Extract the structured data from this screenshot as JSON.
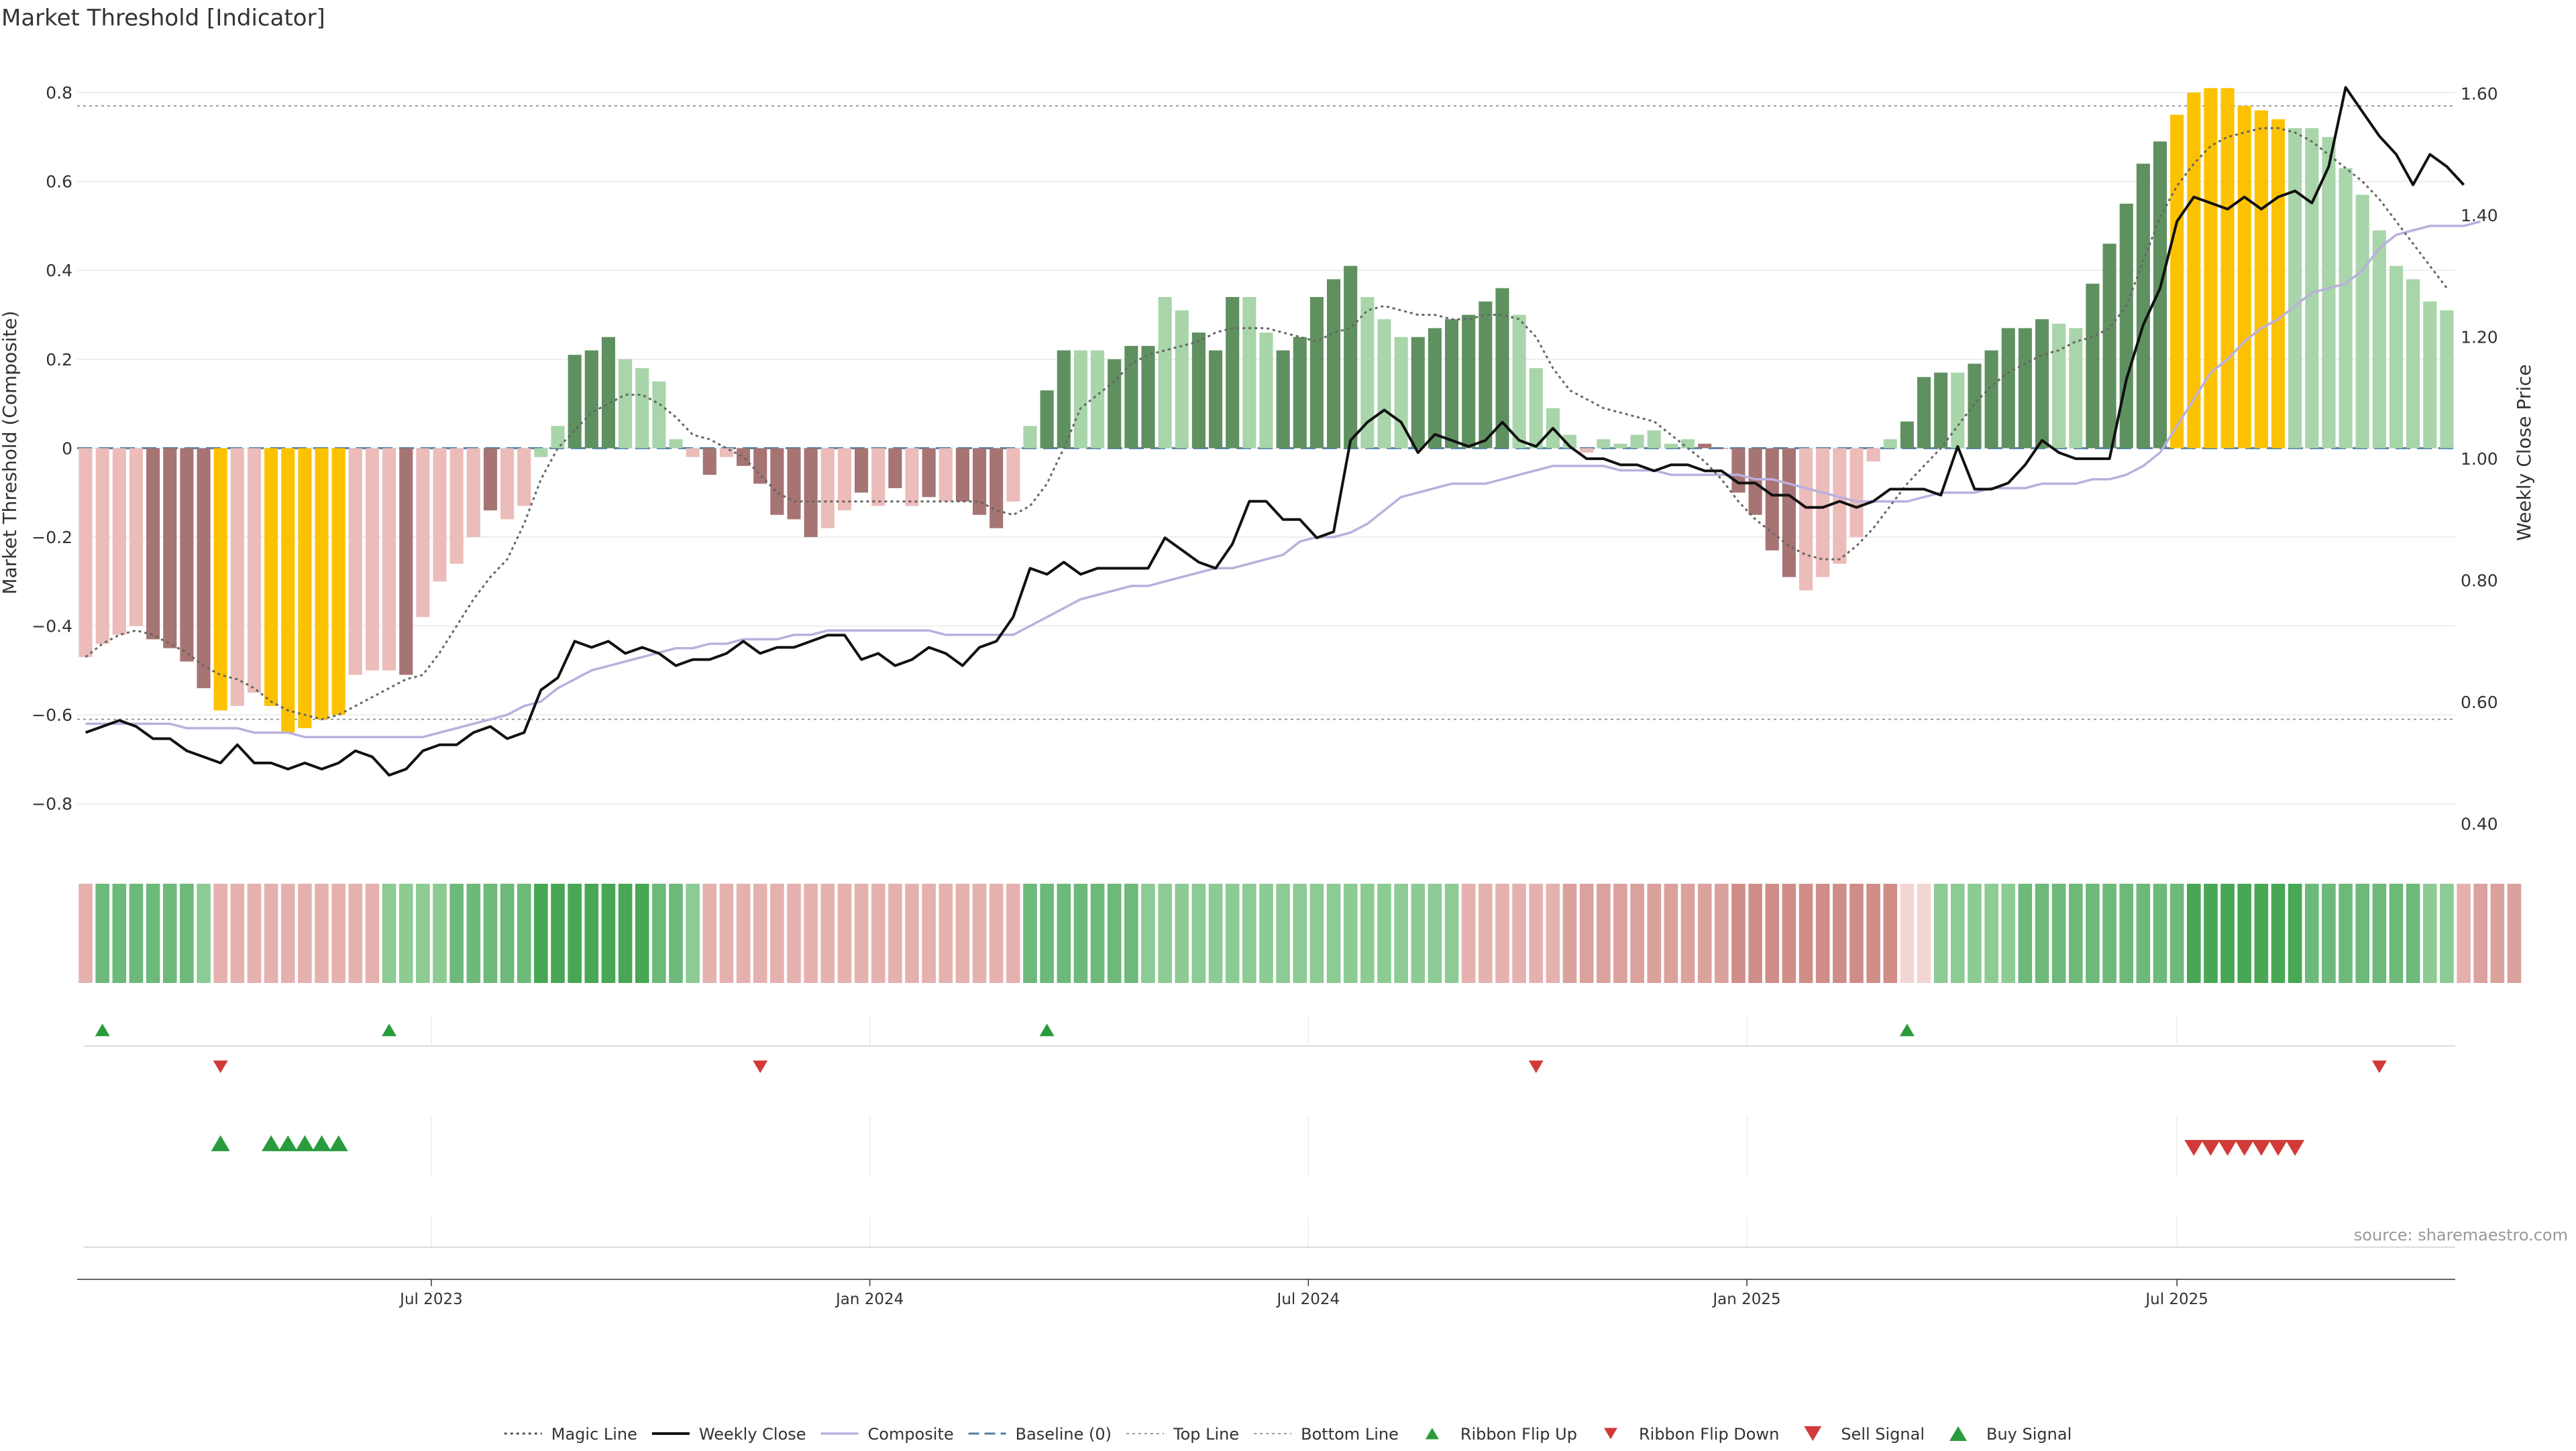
{
  "title": "Market Threshold [Indicator]",
  "source": "source: sharemaestro.com",
  "colors": {
    "pos_strong": "#5f9160",
    "pos_weak": "#a8d5a9",
    "neg_strong": "#a67473",
    "neg_weak": "#ebbcb9",
    "extreme": "#fcc202",
    "close": "#111111",
    "composite": "#b9b0dd",
    "magic": "#666666",
    "baseline": "#4f7fa6",
    "threshold": "#999999",
    "buy": "#2a9b3d",
    "sell": "#d23a3a"
  },
  "chart_data": {
    "type": "bar",
    "title": "Market Threshold [Indicator]",
    "ylabel": "Market Threshold (Composite)",
    "y2label": "Weekly Close Price",
    "ylim": [
      -0.9,
      0.88
    ],
    "y2lim": [
      0.36,
      1.66
    ],
    "yticks": [
      0.8,
      0.6,
      0.4,
      0.2,
      0,
      -0.2,
      -0.4,
      -0.6,
      -0.8
    ],
    "ytick_labels": [
      "0.8",
      "0.6",
      "0.4",
      "0.2",
      "0",
      "−0.2",
      "−0.4",
      "−0.6",
      "−0.8"
    ],
    "y2ticks": [
      1.6,
      1.4,
      1.2,
      1.0,
      0.8,
      0.6,
      0.4
    ],
    "y2tick_labels": [
      "1.60",
      "1.40",
      "1.20",
      "1.00",
      "0.80",
      "0.60",
      "0.40"
    ],
    "xticks": [
      {
        "i": 20.5,
        "label": "Jul 2023"
      },
      {
        "i": 46.5,
        "label": "Jan 2024"
      },
      {
        "i": 72.5,
        "label": "Jul 2024"
      },
      {
        "i": 98.5,
        "label": "Jan 2025"
      },
      {
        "i": 124,
        "label": "Jul 2025"
      }
    ],
    "top_line": 0.77,
    "bottom_line": -0.61,
    "baseline": 0,
    "composite": [
      -0.47,
      -0.44,
      -0.42,
      -0.4,
      -0.43,
      -0.45,
      -0.48,
      -0.54,
      -0.59,
      -0.58,
      -0.55,
      -0.58,
      -0.64,
      -0.63,
      -0.61,
      -0.6,
      -0.51,
      -0.5,
      -0.5,
      -0.51,
      -0.38,
      -0.3,
      -0.26,
      -0.2,
      -0.14,
      -0.16,
      -0.13,
      -0.02,
      0.05,
      0.21,
      0.22,
      0.25,
      0.2,
      0.18,
      0.15,
      0.02,
      -0.02,
      -0.06,
      -0.02,
      -0.04,
      -0.08,
      -0.15,
      -0.16,
      -0.2,
      -0.18,
      -0.14,
      -0.1,
      -0.13,
      -0.09,
      -0.13,
      -0.11,
      -0.12,
      -0.12,
      -0.15,
      -0.18,
      -0.12,
      0.05,
      0.13,
      0.22,
      0.22,
      0.22,
      0.2,
      0.23,
      0.23,
      0.34,
      0.31,
      0.26,
      0.22,
      0.34,
      0.34,
      0.26,
      0.22,
      0.25,
      0.34,
      0.38,
      0.41,
      0.34,
      0.29,
      0.25,
      0.25,
      0.27,
      0.29,
      0.3,
      0.33,
      0.36,
      0.3,
      0.18,
      0.09,
      0.03,
      -0.01,
      0.02,
      0.01,
      0.03,
      0.04,
      0.01,
      0.02,
      0.01,
      0,
      -0.1,
      -0.15,
      -0.23,
      -0.29,
      -0.32,
      -0.29,
      -0.26,
      -0.2,
      -0.03,
      0.02,
      0.06,
      0.16,
      0.17,
      0.17,
      0.19,
      0.22,
      0.27,
      0.27,
      0.29,
      0.28,
      0.27,
      0.37,
      0.46,
      0.55,
      0.64,
      0.69,
      0.75,
      0.8,
      0.81,
      0.81,
      0.77,
      0.76,
      0.74,
      0.72,
      0.72,
      0.7,
      0.63,
      0.57,
      0.49,
      0.41,
      0.38,
      0.33,
      0.31
    ],
    "bar_class": [
      "nw",
      "nw",
      "nw",
      "nw",
      "ns",
      "ns",
      "ns",
      "ns",
      "x",
      "nw",
      "nw",
      "x",
      "x",
      "x",
      "x",
      "x",
      "nw",
      "nw",
      "nw",
      "ns",
      "nw",
      "nw",
      "nw",
      "nw",
      "ns",
      "nw",
      "nw",
      "pw",
      "pw",
      "ps",
      "ps",
      "ps",
      "pw",
      "pw",
      "pw",
      "pw",
      "nw",
      "ns",
      "nw",
      "ns",
      "ns",
      "ns",
      "ns",
      "ns",
      "nw",
      "nw",
      "ns",
      "nw",
      "ns",
      "nw",
      "ns",
      "nw",
      "ns",
      "ns",
      "ns",
      "nw",
      "pw",
      "ps",
      "ps",
      "pw",
      "pw",
      "ps",
      "ps",
      "ps",
      "pw",
      "pw",
      "ps",
      "ps",
      "ps",
      "pw",
      "pw",
      "ps",
      "ps",
      "ps",
      "ps",
      "ps",
      "pw",
      "pw",
      "pw",
      "ps",
      "ps",
      "ps",
      "ps",
      "ps",
      "ps",
      "pw",
      "pw",
      "pw",
      "pw",
      "nw",
      "pw",
      "pw",
      "pw",
      "pw",
      "pw",
      "pw",
      "ns",
      "ns",
      "ns",
      "ns",
      "ns",
      "ns",
      "nw",
      "nw",
      "nw",
      "nw",
      "nw",
      "pw",
      "ps",
      "ps",
      "ps",
      "pw",
      "ps",
      "ps",
      "ps",
      "ps",
      "ps",
      "pw",
      "pw",
      "ps",
      "ps",
      "ps",
      "ps",
      "ps",
      "x",
      "x",
      "x",
      "x",
      "x",
      "x",
      "x",
      "pw",
      "pw",
      "pw",
      "pw",
      "pw",
      "pw",
      "pw",
      "pw",
      "pw",
      "pw",
      "pw"
    ],
    "magic": [
      -0.47,
      -0.44,
      -0.42,
      -0.41,
      -0.42,
      -0.44,
      -0.46,
      -0.49,
      -0.51,
      -0.52,
      -0.54,
      -0.57,
      -0.59,
      -0.6,
      -0.61,
      -0.6,
      -0.58,
      -0.56,
      -0.54,
      -0.52,
      -0.51,
      -0.46,
      -0.4,
      -0.34,
      -0.29,
      -0.25,
      -0.17,
      -0.07,
      0.0,
      0.04,
      0.08,
      0.1,
      0.12,
      0.12,
      0.1,
      0.07,
      0.03,
      0.02,
      0.0,
      -0.02,
      -0.06,
      -0.1,
      -0.12,
      -0.12,
      -0.12,
      -0.12,
      -0.12,
      -0.12,
      -0.12,
      -0.12,
      -0.12,
      -0.12,
      -0.12,
      -0.12,
      -0.14,
      -0.15,
      -0.13,
      -0.08,
      0.0,
      0.09,
      0.12,
      0.15,
      0.19,
      0.21,
      0.22,
      0.23,
      0.24,
      0.26,
      0.27,
      0.27,
      0.27,
      0.26,
      0.25,
      0.24,
      0.26,
      0.27,
      0.31,
      0.32,
      0.31,
      0.3,
      0.3,
      0.29,
      0.29,
      0.3,
      0.3,
      0.29,
      0.25,
      0.18,
      0.13,
      0.11,
      0.09,
      0.08,
      0.07,
      0.06,
      0.03,
      0.0,
      -0.03,
      -0.07,
      -0.12,
      -0.16,
      -0.19,
      -0.22,
      -0.24,
      -0.25,
      -0.25,
      -0.22,
      -0.18,
      -0.13,
      -0.08,
      -0.04,
      0.0,
      0.05,
      0.1,
      0.14,
      0.17,
      0.19,
      0.21,
      0.22,
      0.24,
      0.25,
      0.27,
      0.32,
      0.42,
      0.52,
      0.59,
      0.64,
      0.68,
      0.7,
      0.71,
      0.72,
      0.72,
      0.71,
      0.69,
      0.66,
      0.63,
      0.6,
      0.56,
      0.51,
      0.46,
      0.41,
      0.36
    ],
    "close": [
      0.55,
      0.56,
      0.57,
      0.56,
      0.54,
      0.54,
      0.52,
      0.51,
      0.5,
      0.53,
      0.5,
      0.5,
      0.49,
      0.5,
      0.49,
      0.5,
      0.52,
      0.51,
      0.48,
      0.49,
      0.52,
      0.53,
      0.53,
      0.55,
      0.56,
      0.54,
      0.55,
      0.62,
      0.64,
      0.7,
      0.69,
      0.7,
      0.68,
      0.69,
      0.68,
      0.66,
      0.67,
      0.67,
      0.68,
      0.7,
      0.68,
      0.69,
      0.69,
      0.7,
      0.71,
      0.71,
      0.67,
      0.68,
      0.66,
      0.67,
      0.69,
      0.68,
      0.66,
      0.69,
      0.7,
      0.74,
      0.82,
      0.81,
      0.83,
      0.81,
      0.82,
      0.82,
      0.82,
      0.82,
      0.87,
      0.85,
      0.83,
      0.82,
      0.86,
      0.93,
      0.93,
      0.9,
      0.9,
      0.87,
      0.88,
      1.03,
      1.06,
      1.08,
      1.06,
      1.01,
      1.04,
      1.03,
      1.02,
      1.03,
      1.06,
      1.03,
      1.02,
      1.05,
      1.02,
      1.0,
      1.0,
      0.99,
      0.99,
      0.98,
      0.99,
      0.99,
      0.98,
      0.98,
      0.96,
      0.96,
      0.94,
      0.94,
      0.92,
      0.92,
      0.93,
      0.92,
      0.93,
      0.95,
      0.95,
      0.95,
      0.94,
      1.02,
      0.95,
      0.95,
      0.96,
      0.99,
      1.03,
      1.01,
      1.0,
      1.0,
      1.0,
      1.13,
      1.22,
      1.28,
      1.39,
      1.43,
      1.42,
      1.41,
      1.43,
      1.41,
      1.43,
      1.44,
      1.42,
      1.48,
      1.61,
      1.57,
      1.53,
      1.5,
      1.45,
      1.5,
      1.48,
      1.45
    ],
    "composite_line": [
      -0.62,
      -0.62,
      -0.62,
      -0.62,
      -0.62,
      -0.62,
      -0.63,
      -0.63,
      -0.63,
      -0.63,
      -0.64,
      -0.64,
      -0.64,
      -0.65,
      -0.65,
      -0.65,
      -0.65,
      -0.65,
      -0.65,
      -0.65,
      -0.65,
      -0.64,
      -0.63,
      -0.62,
      -0.61,
      -0.6,
      -0.58,
      -0.57,
      -0.54,
      -0.52,
      -0.5,
      -0.49,
      -0.48,
      -0.47,
      -0.46,
      -0.45,
      -0.45,
      -0.44,
      -0.44,
      -0.43,
      -0.43,
      -0.43,
      -0.42,
      -0.42,
      -0.41,
      -0.41,
      -0.41,
      -0.41,
      -0.41,
      -0.41,
      -0.41,
      -0.42,
      -0.42,
      -0.42,
      -0.42,
      -0.42,
      -0.4,
      -0.38,
      -0.36,
      -0.34,
      -0.33,
      -0.32,
      -0.31,
      -0.31,
      -0.3,
      -0.29,
      -0.28,
      -0.27,
      -0.27,
      -0.26,
      -0.25,
      -0.24,
      -0.21,
      -0.2,
      -0.2,
      -0.19,
      -0.17,
      -0.14,
      -0.11,
      -0.1,
      -0.09,
      -0.08,
      -0.08,
      -0.08,
      -0.07,
      -0.06,
      -0.05,
      -0.04,
      -0.04,
      -0.04,
      -0.04,
      -0.05,
      -0.05,
      -0.05,
      -0.06,
      -0.06,
      -0.06,
      -0.06,
      -0.06,
      -0.07,
      -0.07,
      -0.08,
      -0.09,
      -0.1,
      -0.11,
      -0.12,
      -0.12,
      -0.12,
      -0.12,
      -0.11,
      -0.1,
      -0.1,
      -0.1,
      -0.09,
      -0.09,
      -0.09,
      -0.08,
      -0.08,
      -0.08,
      -0.07,
      -0.07,
      -0.06,
      -0.04,
      -0.01,
      0.05,
      0.11,
      0.17,
      0.2,
      0.24,
      0.27,
      0.29,
      0.32,
      0.35,
      0.36,
      0.37,
      0.4,
      0.45,
      0.48,
      0.49,
      0.5,
      0.5,
      0.5,
      0.51
    ],
    "ribbon_level": [
      0,
      2,
      2,
      2,
      2,
      2,
      2,
      1,
      0,
      0,
      0,
      0,
      0,
      0,
      0,
      0,
      0,
      0,
      1,
      1,
      1,
      1,
      2,
      2,
      2,
      2,
      2,
      3,
      3,
      3,
      3,
      3,
      3,
      3,
      2,
      2,
      1,
      0,
      0,
      0,
      0,
      0,
      0,
      0,
      0,
      0,
      0,
      0,
      0,
      0,
      0,
      0,
      0,
      0,
      0,
      0,
      2,
      2,
      2,
      2,
      2,
      2,
      2,
      1,
      1,
      1,
      1,
      1,
      1,
      1,
      1,
      1,
      1,
      1,
      1,
      1,
      1,
      1,
      1,
      1,
      1,
      1,
      0,
      0,
      0,
      0,
      0,
      0,
      0,
      0,
      0,
      0,
      0,
      0,
      0,
      0,
      0,
      0,
      0,
      0,
      0,
      0,
      0,
      0,
      0,
      0,
      0,
      0,
      0,
      0,
      1,
      1,
      1,
      1,
      1,
      2,
      2,
      2,
      2,
      2,
      2,
      2,
      2,
      2,
      2,
      3,
      3,
      3,
      3,
      3,
      3,
      3,
      2,
      2,
      2,
      2,
      2,
      2,
      2,
      1,
      1,
      0,
      0,
      0,
      0
    ],
    "ribbon_neg": [
      1,
      0,
      0,
      0,
      0,
      0,
      0,
      0,
      1,
      1,
      1,
      1,
      1,
      1,
      1,
      1,
      1,
      1,
      0,
      0,
      0,
      0,
      0,
      0,
      0,
      0,
      0,
      0,
      0,
      0,
      0,
      0,
      0,
      0,
      0,
      0,
      0,
      1,
      1,
      1,
      1,
      1,
      1,
      1,
      1,
      1,
      1,
      1,
      1,
      1,
      1,
      1,
      1,
      1,
      1,
      1,
      0,
      0,
      0,
      0,
      0,
      0,
      0,
      0,
      0,
      0,
      0,
      0,
      0,
      0,
      0,
      0,
      0,
      0,
      0,
      0,
      0,
      0,
      0,
      0,
      0,
      0,
      1,
      1,
      1,
      1,
      1,
      1,
      2,
      2,
      2,
      2,
      2,
      2,
      2,
      2,
      2,
      2,
      3,
      3,
      3,
      3,
      3,
      3,
      3,
      3,
      3,
      3,
      0,
      0,
      0,
      0,
      0,
      0,
      0,
      0,
      0,
      0,
      0,
      0,
      0,
      0,
      0,
      0,
      0,
      0,
      0,
      0,
      0,
      0,
      0,
      0,
      0,
      0,
      0,
      0,
      0,
      0,
      0,
      0,
      0,
      1,
      2,
      2,
      2,
      2
    ],
    "ribbon_flip_up": [
      1,
      18,
      57,
      108
    ],
    "ribbon_flip_down": [
      8,
      40,
      86,
      136
    ],
    "buy_signal": [
      8,
      11,
      12,
      13,
      14,
      15
    ],
    "sell_signal": [
      125,
      126,
      127,
      128,
      129,
      130,
      131
    ],
    "legend": [
      {
        "name": "Magic Line",
        "kind": "dotted",
        "color": "#555555"
      },
      {
        "name": "Weekly Close",
        "kind": "solid",
        "color": "#111111"
      },
      {
        "name": "Composite",
        "kind": "solid",
        "color": "#b9b0dd"
      },
      {
        "name": "Baseline (0)",
        "kind": "dashed",
        "color": "#4f7fa6"
      },
      {
        "name": "Top Line",
        "kind": "dotted-light",
        "color": "#999999"
      },
      {
        "name": "Bottom Line",
        "kind": "dotted-light",
        "color": "#999999"
      },
      {
        "name": "Ribbon Flip Up",
        "kind": "tri-up-small",
        "color": "#2a9b3d"
      },
      {
        "name": "Ribbon Flip Down",
        "kind": "tri-down-small",
        "color": "#d23a3a"
      },
      {
        "name": "Sell Signal",
        "kind": "tri-down",
        "color": "#d23a3a"
      },
      {
        "name": "Buy Signal",
        "kind": "tri-up",
        "color": "#2a9b3d"
      }
    ],
    "legend_placement": "bottom-center",
    "grid": true
  }
}
